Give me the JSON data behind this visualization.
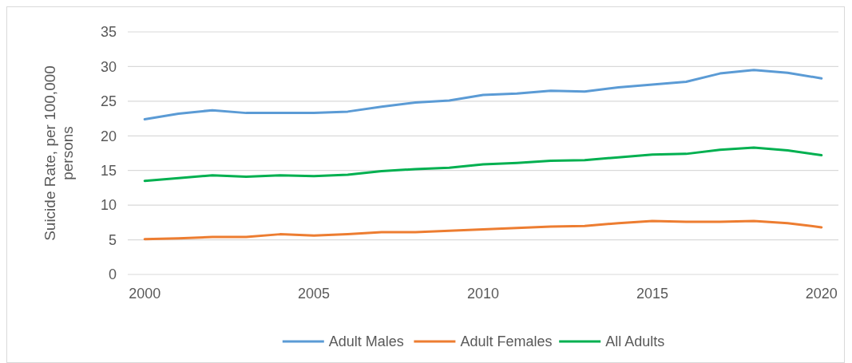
{
  "chart_data": {
    "type": "line",
    "ylabel": "Suicide Rate, per 100,000 persons",
    "x": [
      2000,
      2001,
      2002,
      2003,
      2004,
      2005,
      2006,
      2007,
      2008,
      2009,
      2010,
      2011,
      2012,
      2013,
      2014,
      2015,
      2016,
      2017,
      2018,
      2019,
      2020
    ],
    "xlim": [
      1999.5,
      2020.5
    ],
    "xticks": [
      2000,
      2005,
      2010,
      2015,
      2020
    ],
    "ylim": [
      0,
      35
    ],
    "yticks": [
      0,
      5,
      10,
      15,
      20,
      25,
      30,
      35
    ],
    "grid": "y",
    "legend": "bottom",
    "line_style": "solid",
    "marker": "none",
    "series": [
      {
        "name": "Adult Males",
        "color": "#5b9bd5",
        "values": [
          22.4,
          23.2,
          23.7,
          23.3,
          23.3,
          23.3,
          23.5,
          24.2,
          24.8,
          25.1,
          25.9,
          26.1,
          26.5,
          26.4,
          27.0,
          27.4,
          27.8,
          29.0,
          29.5,
          29.1,
          28.3
        ]
      },
      {
        "name": "Adult Females",
        "color": "#ed7d31",
        "values": [
          5.1,
          5.2,
          5.4,
          5.4,
          5.8,
          5.6,
          5.8,
          6.1,
          6.1,
          6.3,
          6.5,
          6.7,
          6.9,
          7.0,
          7.4,
          7.7,
          7.6,
          7.6,
          7.7,
          7.4,
          6.8
        ]
      },
      {
        "name": "All Adults",
        "color": "#00b050",
        "values": [
          13.5,
          13.9,
          14.3,
          14.1,
          14.3,
          14.2,
          14.4,
          14.9,
          15.2,
          15.4,
          15.9,
          16.1,
          16.4,
          16.5,
          16.9,
          17.3,
          17.4,
          18.0,
          18.3,
          17.9,
          17.2
        ]
      }
    ]
  }
}
